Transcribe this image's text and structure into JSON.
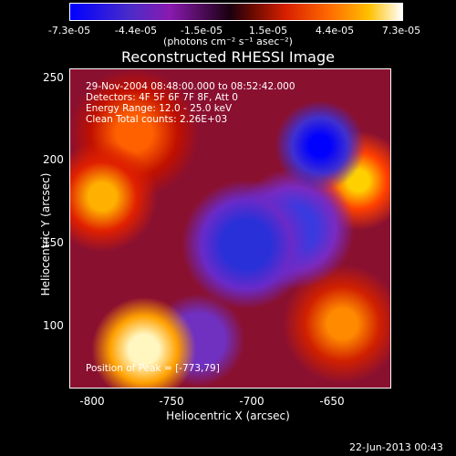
{
  "colorbar": {
    "ticks": [
      "-7.3e-05",
      "-4.4e-05",
      "-1.5e-05",
      "1.5e-05",
      "4.4e-05",
      "7.3e-05"
    ],
    "units": "(photons cm⁻² s⁻¹ asec⁻²)"
  },
  "plot": {
    "title": "Reconstructed RHESSI Image",
    "xlabel": "Heliocentric X (arcsec)",
    "ylabel": "Heliocentric Y (arcsec)",
    "xticks": [
      "-800",
      "-750",
      "-700",
      "-650"
    ],
    "yticks": [
      "250",
      "200",
      "150",
      "100"
    ]
  },
  "overlay": {
    "line1": "29-Nov-2004 08:48:00.000 to 08:52:42.000",
    "line2": "Detectors: 4F 5F 6F 7F 8F, Att 0",
    "line3": "Energy Range: 12.0 - 25.0 keV",
    "line4": "Clean     Total counts: 2.26E+03",
    "peak": "Position of Peak = [-773,79]"
  },
  "footer": {
    "timestamp": "22-Jun-2013 00:43"
  }
}
